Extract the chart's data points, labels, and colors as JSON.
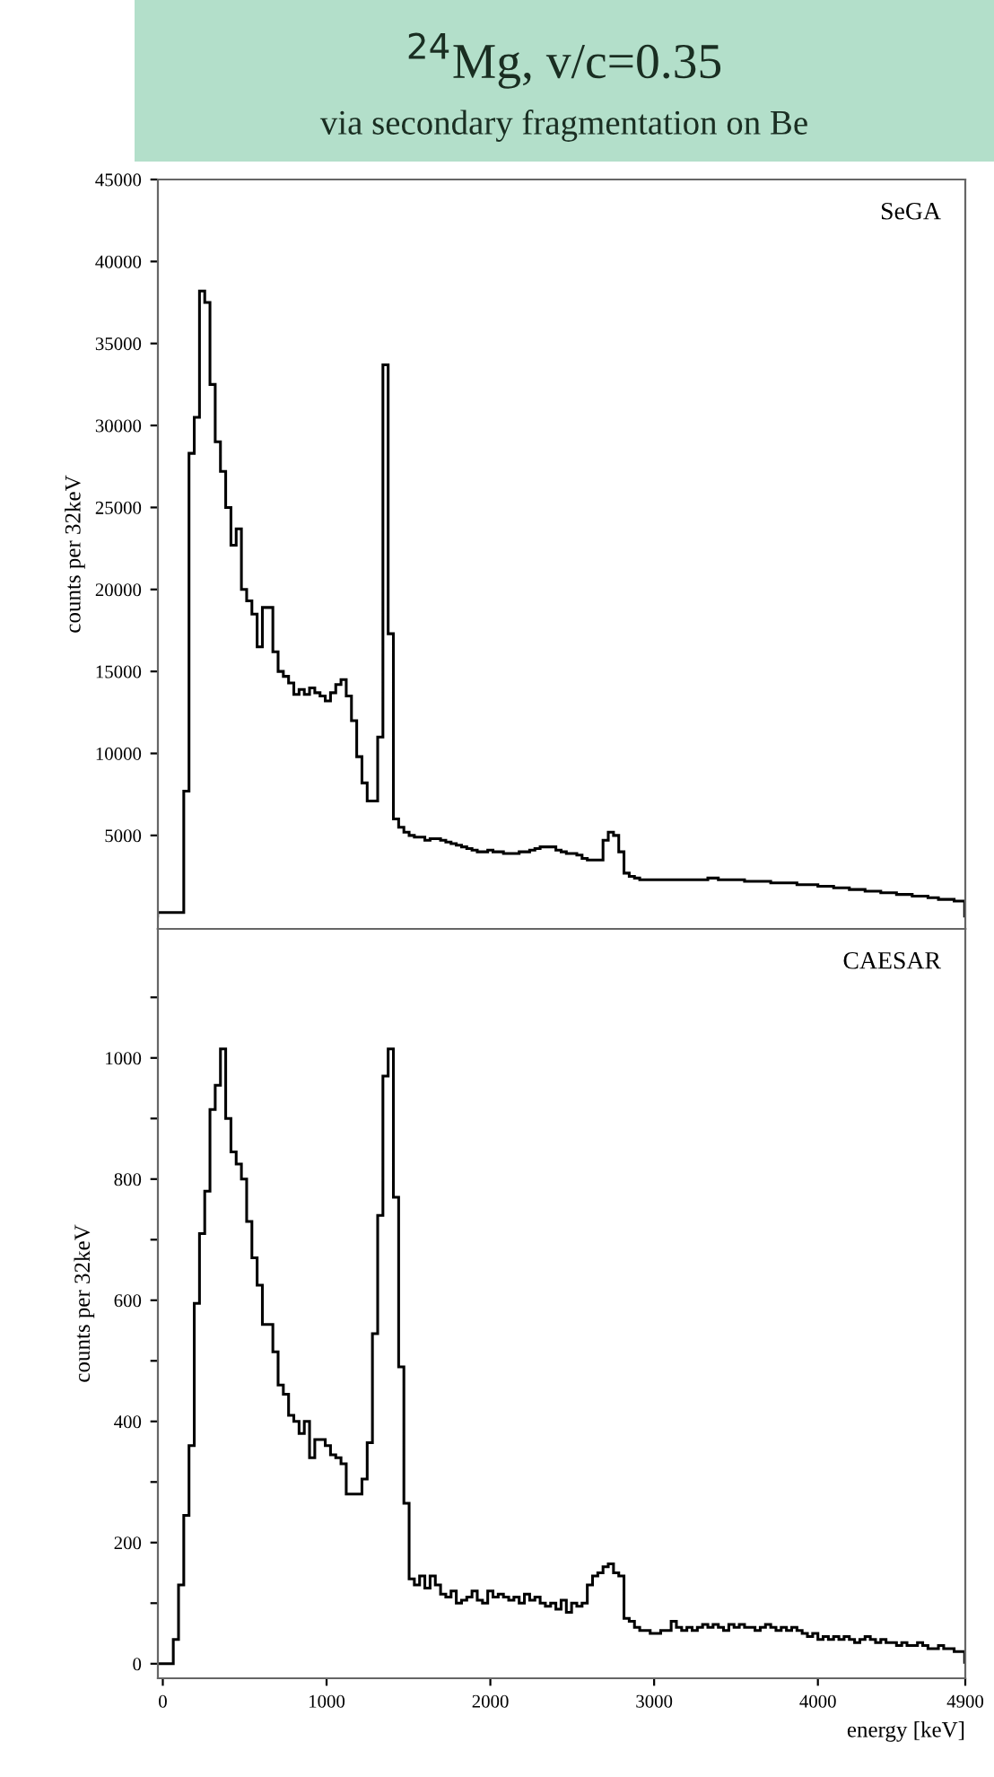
{
  "chart_data": [
    {
      "type": "histogram",
      "title": "$^{24}$Mg, v/c=0.35",
      "subtitle": "via secondary fragmentation on Be",
      "ylabel": "counts per 32keV",
      "annotations": [
        "SeGA"
      ],
      "color": "#000000",
      "bins": [
        -32,
        0,
        32,
        64,
        96,
        128,
        160,
        192,
        224,
        256,
        288,
        320,
        352,
        384,
        416,
        448,
        480,
        512,
        544,
        576,
        608,
        640,
        672,
        704,
        736,
        768,
        800,
        832,
        864,
        896,
        928,
        960,
        992,
        1024,
        1056,
        1088,
        1120,
        1152,
        1184,
        1216,
        1248,
        1280,
        1312,
        1344,
        1376,
        1408,
        1440,
        1472,
        1504,
        1536,
        1568,
        1600,
        1632,
        1664,
        1696,
        1728,
        1760,
        1792,
        1824,
        1856,
        1888,
        1920,
        1952,
        1984,
        2016,
        2048,
        2080,
        2112,
        2144,
        2176,
        2208,
        2240,
        2272,
        2304,
        2336,
        2368,
        2400,
        2432,
        2464,
        2496,
        2528,
        2560,
        2592,
        2624,
        2656,
        2688,
        2720,
        2752,
        2784,
        2816,
        2848,
        2880,
        2912,
        2944,
        2976,
        3008,
        3040,
        3072,
        3104,
        3136,
        3168,
        3200,
        3232,
        3264,
        3296,
        3328,
        3360,
        3392,
        3424,
        3456,
        3488,
        3520,
        3552,
        3584,
        3616,
        3648,
        3680,
        3712,
        3744,
        3776,
        3808,
        3840,
        3872,
        3904,
        3936,
        3968,
        4000,
        4032,
        4064,
        4096,
        4128,
        4160,
        4192,
        4224,
        4256,
        4288,
        4320,
        4352,
        4384,
        4416,
        4448,
        4480,
        4512,
        4544,
        4576,
        4608,
        4640,
        4672,
        4704,
        4736,
        4768,
        4800,
        4832,
        4864,
        4896
      ],
      "values": [
        300,
        300,
        300,
        300,
        300,
        7700,
        28300,
        30500,
        38200,
        37500,
        32500,
        29000,
        27200,
        25000,
        22700,
        23700,
        20000,
        19300,
        18500,
        16500,
        18900,
        18900,
        16200,
        15000,
        14700,
        14300,
        13600,
        13900,
        13600,
        14000,
        13700,
        13500,
        13200,
        13700,
        14200,
        14500,
        13500,
        12000,
        9800,
        8200,
        7100,
        7100,
        11000,
        33700,
        17300,
        6000,
        5500,
        5200,
        5000,
        4900,
        4900,
        4700,
        4800,
        4800,
        4700,
        4600,
        4500,
        4400,
        4300,
        4200,
        4100,
        4000,
        4000,
        4100,
        4000,
        4000,
        3900,
        3900,
        3900,
        4000,
        4000,
        4100,
        4200,
        4300,
        4300,
        4300,
        4100,
        4000,
        3900,
        3900,
        3800,
        3600,
        3500,
        3500,
        3500,
        4700,
        5200,
        5000,
        4000,
        2700,
        2500,
        2400,
        2300,
        2300,
        2300,
        2300,
        2300,
        2300,
        2300,
        2300,
        2300,
        2300,
        2300,
        2300,
        2300,
        2400,
        2400,
        2300,
        2300,
        2300,
        2300,
        2300,
        2200,
        2200,
        2200,
        2200,
        2200,
        2100,
        2100,
        2100,
        2100,
        2100,
        2000,
        2000,
        2000,
        2000,
        1900,
        1900,
        1900,
        1800,
        1800,
        1800,
        1700,
        1700,
        1700,
        1600,
        1600,
        1600,
        1500,
        1500,
        1500,
        1400,
        1400,
        1400,
        1300,
        1300,
        1300,
        1200,
        1200,
        1100,
        1100,
        1100,
        1000,
        1000
      ],
      "xlim": [
        -30,
        4900
      ],
      "ylim": [
        -700,
        45000
      ],
      "yticks": [
        5000,
        10000,
        15000,
        20000,
        25000,
        30000,
        35000,
        40000,
        45000
      ],
      "tick_labels": "y",
      "grid": false
    },
    {
      "type": "histogram",
      "xlabel": "energy [keV]",
      "ylabel": "counts per 32keV",
      "annotations": [
        "CAESAR"
      ],
      "color": "#000000",
      "bins": [
        -32,
        0,
        32,
        64,
        96,
        128,
        160,
        192,
        224,
        256,
        288,
        320,
        352,
        384,
        416,
        448,
        480,
        512,
        544,
        576,
        608,
        640,
        672,
        704,
        736,
        768,
        800,
        832,
        864,
        896,
        928,
        960,
        992,
        1024,
        1056,
        1088,
        1120,
        1152,
        1184,
        1216,
        1248,
        1280,
        1312,
        1344,
        1376,
        1408,
        1440,
        1472,
        1504,
        1536,
        1568,
        1600,
        1632,
        1664,
        1696,
        1728,
        1760,
        1792,
        1824,
        1856,
        1888,
        1920,
        1952,
        1984,
        2016,
        2048,
        2080,
        2112,
        2144,
        2176,
        2208,
        2240,
        2272,
        2304,
        2336,
        2368,
        2400,
        2432,
        2464,
        2496,
        2528,
        2560,
        2592,
        2624,
        2656,
        2688,
        2720,
        2752,
        2784,
        2816,
        2848,
        2880,
        2912,
        2944,
        2976,
        3008,
        3040,
        3072,
        3104,
        3136,
        3168,
        3200,
        3232,
        3264,
        3296,
        3328,
        3360,
        3392,
        3424,
        3456,
        3488,
        3520,
        3552,
        3584,
        3616,
        3648,
        3680,
        3712,
        3744,
        3776,
        3808,
        3840,
        3872,
        3904,
        3936,
        3968,
        4000,
        4032,
        4064,
        4096,
        4128,
        4160,
        4192,
        4224,
        4256,
        4288,
        4320,
        4352,
        4384,
        4416,
        4448,
        4480,
        4512,
        4544,
        4576,
        4608,
        4640,
        4672,
        4704,
        4736,
        4768,
        4800,
        4832,
        4864,
        4896
      ],
      "values": [
        0,
        0,
        0,
        40,
        130,
        245,
        360,
        595,
        710,
        780,
        915,
        955,
        1015,
        900,
        845,
        825,
        800,
        730,
        670,
        625,
        560,
        560,
        515,
        460,
        445,
        410,
        400,
        380,
        400,
        340,
        370,
        370,
        360,
        345,
        340,
        330,
        280,
        280,
        280,
        305,
        365,
        545,
        740,
        970,
        1015,
        770,
        490,
        265,
        140,
        130,
        145,
        125,
        145,
        130,
        115,
        110,
        120,
        100,
        105,
        110,
        120,
        105,
        100,
        120,
        110,
        115,
        110,
        105,
        110,
        100,
        115,
        105,
        110,
        100,
        95,
        100,
        90,
        105,
        85,
        100,
        95,
        100,
        130,
        145,
        150,
        160,
        165,
        150,
        145,
        75,
        70,
        60,
        55,
        55,
        50,
        50,
        55,
        55,
        70,
        60,
        55,
        60,
        55,
        60,
        65,
        60,
        65,
        60,
        55,
        65,
        60,
        65,
        60,
        60,
        55,
        60,
        65,
        60,
        55,
        60,
        55,
        60,
        55,
        50,
        45,
        50,
        40,
        45,
        40,
        45,
        40,
        45,
        40,
        35,
        40,
        45,
        40,
        35,
        40,
        35,
        35,
        30,
        35,
        30,
        30,
        35,
        30,
        25,
        25,
        30,
        25,
        25,
        20,
        20
      ],
      "xlim": [
        -30,
        4900
      ],
      "ylim": [
        -24,
        1213
      ],
      "xticks": [
        0,
        1000,
        2000,
        3000,
        4000,
        4900
      ],
      "yticks": [
        0,
        {
          "value": 100,
          "label": null
        },
        200,
        {
          "value": 300,
          "label": null
        },
        400,
        {
          "value": 500,
          "label": null
        },
        600,
        {
          "value": 700,
          "label": null
        },
        800,
        {
          "value": 900,
          "label": null
        },
        1000,
        {
          "value": 1100,
          "label": null
        }
      ],
      "grid": false
    }
  ]
}
